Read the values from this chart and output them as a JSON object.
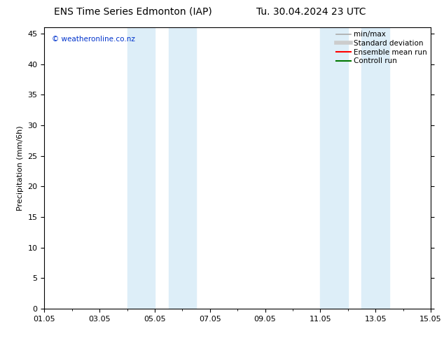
{
  "title_left": "ENS Time Series Edmonton (IAP)",
  "title_right": "Tu. 30.04.2024 23 UTC",
  "ylabel": "Precipitation (mm/6h)",
  "xlim_num": [
    0,
    14
  ],
  "ylim": [
    0,
    46
  ],
  "yticks": [
    0,
    5,
    10,
    15,
    20,
    25,
    30,
    35,
    40,
    45
  ],
  "xtick_labels": [
    "01.05",
    "03.05",
    "05.05",
    "07.05",
    "09.05",
    "11.05",
    "13.05",
    "15.05"
  ],
  "xtick_positions": [
    0,
    2,
    4,
    6,
    8,
    10,
    12,
    14
  ],
  "shaded_regions": [
    [
      3.0,
      4.0
    ],
    [
      4.5,
      5.5
    ],
    [
      10.0,
      11.0
    ],
    [
      11.5,
      12.5
    ]
  ],
  "shaded_color": "#ddeef8",
  "watermark_text": "© weatheronline.co.nz",
  "watermark_color": "#0033cc",
  "legend_items": [
    {
      "label": "min/max",
      "color": "#aaaaaa",
      "lw": 1.2
    },
    {
      "label": "Standard deviation",
      "color": "#cccccc",
      "lw": 4
    },
    {
      "label": "Ensemble mean run",
      "color": "#ff0000",
      "lw": 1.5
    },
    {
      "label": "Controll run",
      "color": "#007700",
      "lw": 1.5
    }
  ],
  "bg_color": "#ffffff",
  "plot_bg_color": "#ffffff",
  "tick_color": "#000000",
  "title_fontsize": 10,
  "label_fontsize": 8,
  "tick_fontsize": 8,
  "legend_fontsize": 7.5
}
